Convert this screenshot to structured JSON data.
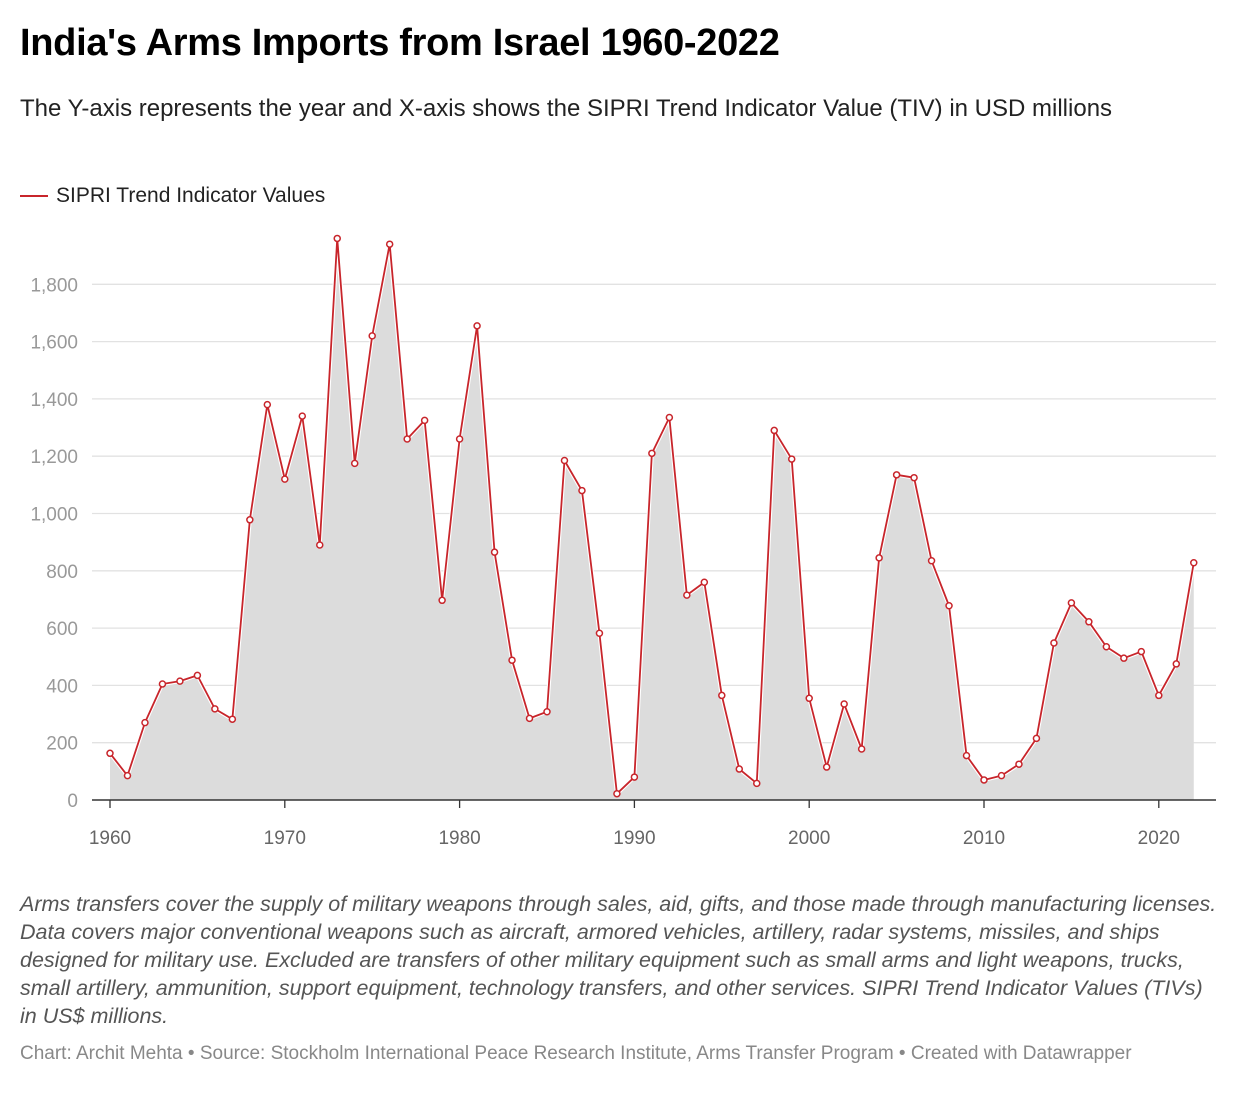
{
  "title": "India's Arms Imports from Israel 1960-2022",
  "subtitle": "The Y-axis represents the year and X-axis shows the SIPRI Trend Indicator Value (TIV) in USD millions",
  "legend_label": "SIPRI Trend Indicator Values",
  "notes": "Arms transfers cover the supply of military weapons through sales, aid, gifts, and those made through manufacturing licenses. Data covers major conventional weapons such as aircraft, armored vehicles, artillery, radar systems, missiles, and ships designed for military use. Excluded are transfers of other military equipment such as small arms and light weapons, trucks, small artillery, ammunition, support equipment, technology transfers, and other services. SIPRI Trend Indicator Values (TIVs) in US$ millions.",
  "footer": "Chart: Archit Mehta • Source: Stockholm International Peace Research Institute, Arms Transfer Program • Created with Datawrapper",
  "colors": {
    "line": "#c8252b",
    "area": "#dcdcdc",
    "grid": "#e2e2e2",
    "axis": "#333333",
    "tick_text": "#999999"
  },
  "chart_data": {
    "type": "area",
    "grid": true,
    "legend_position": "top-left",
    "xlim": [
      1960,
      2023
    ],
    "ylim": [
      0,
      1960
    ],
    "x_ticks": [
      1960,
      1970,
      1980,
      1990,
      2000,
      2010,
      2020
    ],
    "x_tick_labels": [
      "1960",
      "1970",
      "1980",
      "1990",
      "2000",
      "2010",
      "2020"
    ],
    "y_ticks": [
      0,
      200,
      400,
      600,
      800,
      1000,
      1200,
      1400,
      1600,
      1800
    ],
    "y_tick_labels": [
      "0",
      "200",
      "400",
      "600",
      "800",
      "1,000",
      "1,200",
      "1,400",
      "1,600",
      "1,800"
    ],
    "series": [
      {
        "name": "SIPRI Trend Indicator Values",
        "x": [
          1960,
          1961,
          1962,
          1963,
          1964,
          1965,
          1966,
          1967,
          1968,
          1969,
          1970,
          1971,
          1972,
          1973,
          1974,
          1975,
          1976,
          1977,
          1978,
          1979,
          1980,
          1981,
          1982,
          1983,
          1984,
          1985,
          1986,
          1987,
          1988,
          1989,
          1990,
          1991,
          1992,
          1993,
          1994,
          1995,
          1996,
          1997,
          1998,
          1999,
          2000,
          2001,
          2002,
          2003,
          2004,
          2005,
          2006,
          2007,
          2008,
          2009,
          2010,
          2011,
          2012,
          2013,
          2014,
          2015,
          2016,
          2017,
          2018,
          2019,
          2020,
          2021,
          2022
        ],
        "values": [
          163,
          85,
          270,
          405,
          415,
          435,
          318,
          282,
          978,
          1380,
          1120,
          1340,
          890,
          1960,
          1175,
          1620,
          1940,
          1260,
          1325,
          697,
          1260,
          1655,
          865,
          488,
          285,
          308,
          1185,
          1080,
          582,
          22,
          80,
          1210,
          1335,
          715,
          760,
          365,
          108,
          58,
          1290,
          1190,
          355,
          115,
          335,
          178,
          845,
          1135,
          1125,
          835,
          678,
          155,
          70,
          85,
          125,
          215,
          548,
          688,
          622,
          535,
          495,
          518,
          365,
          475,
          828
        ]
      }
    ]
  }
}
